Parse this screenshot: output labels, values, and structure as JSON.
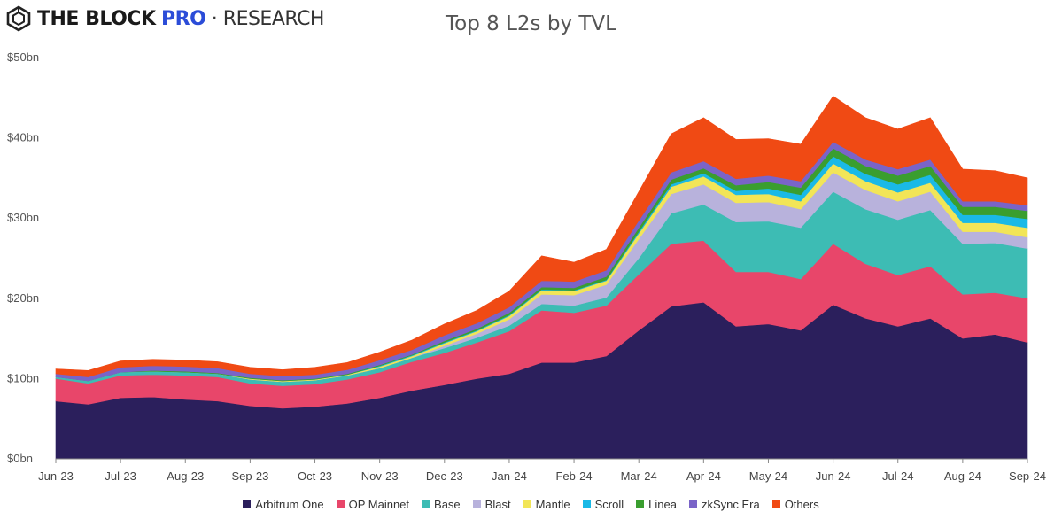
{
  "header": {
    "brand_name": "THE BLOCK",
    "brand_pro": "PRO",
    "brand_sep": " · ",
    "brand_research": "RESEARCH"
  },
  "chart_data": {
    "type": "area",
    "stacked": true,
    "title": "Top 8 L2s by TVL",
    "xlabel": "",
    "ylabel": "",
    "ylim": [
      0,
      50
    ],
    "y_ticks": [
      0,
      10,
      20,
      30,
      40,
      50
    ],
    "y_tick_labels": [
      "$0bn",
      "$10bn",
      "$20bn",
      "$30bn",
      "$40bn",
      "$50bn"
    ],
    "grid": false,
    "legend_position": "bottom",
    "x_ticks": [
      "Jun-23",
      "Jul-23",
      "Aug-23",
      "Sep-23",
      "Oct-23",
      "Nov-23",
      "Dec-23",
      "Jan-24",
      "Feb-24",
      "Mar-24",
      "Apr-24",
      "May-24",
      "Jun-24",
      "Jul-24",
      "Aug-24",
      "Sep-24"
    ],
    "x": [
      "Jun-23",
      "Jun-23 mid",
      "Jul-23",
      "Jul-23 mid",
      "Aug-23",
      "Aug-23 mid",
      "Sep-23",
      "Sep-23 mid",
      "Oct-23",
      "Oct-23 mid",
      "Nov-23",
      "Nov-23 mid",
      "Dec-23",
      "Dec-23 mid",
      "Jan-24",
      "Jan-24 mid",
      "Feb-24",
      "Feb-24 mid",
      "Mar-24",
      "Mar-24 mid",
      "Apr-24",
      "Apr-24 mid",
      "May-24",
      "May-24 mid",
      "Jun-24",
      "Jun-24 mid",
      "Jul-24",
      "Jul-24 mid",
      "Aug-24",
      "Aug-24 mid",
      "Sep-24"
    ],
    "series": [
      {
        "name": "Arbitrum One",
        "color": "#2b1f5c",
        "values": [
          7.2,
          6.8,
          7.6,
          7.7,
          7.4,
          7.2,
          6.6,
          6.3,
          6.5,
          6.9,
          7.6,
          8.5,
          9.2,
          10.0,
          10.6,
          12.0,
          12.0,
          12.8,
          16.0,
          19.0,
          19.5,
          16.5,
          16.8,
          16.0,
          19.2,
          17.5,
          16.5,
          17.5,
          15.0,
          15.5,
          14.5
        ]
      },
      {
        "name": "OP Mainnet",
        "color": "#e8466a",
        "values": [
          2.8,
          2.6,
          2.8,
          2.8,
          3.0,
          3.0,
          2.8,
          2.8,
          2.8,
          3.0,
          3.2,
          3.6,
          4.0,
          4.5,
          5.3,
          6.5,
          6.2,
          6.3,
          7.0,
          7.8,
          7.7,
          6.8,
          6.5,
          6.4,
          7.6,
          6.8,
          6.4,
          6.5,
          5.5,
          5.2,
          5.5
        ]
      },
      {
        "name": "Base",
        "color": "#3dbcb4",
        "values": [
          0.2,
          0.3,
          0.4,
          0.4,
          0.4,
          0.4,
          0.5,
          0.5,
          0.5,
          0.5,
          0.5,
          0.5,
          0.6,
          0.6,
          0.7,
          0.8,
          0.9,
          1.0,
          2.0,
          3.8,
          4.5,
          6.2,
          6.3,
          6.4,
          6.5,
          6.8,
          6.9,
          7.0,
          6.3,
          6.2,
          6.2
        ]
      },
      {
        "name": "Blast",
        "color": "#b8b2dc",
        "values": [
          0.0,
          0.0,
          0.0,
          0.0,
          0.0,
          0.0,
          0.0,
          0.0,
          0.0,
          0.0,
          0.0,
          0.0,
          0.3,
          0.5,
          0.8,
          1.2,
          1.3,
          1.6,
          2.4,
          2.4,
          2.5,
          2.4,
          2.4,
          2.3,
          2.4,
          2.4,
          2.3,
          2.3,
          1.5,
          1.4,
          1.4
        ]
      },
      {
        "name": "Mantle",
        "color": "#f2e557",
        "values": [
          0.0,
          0.0,
          0.0,
          0.0,
          0.0,
          0.0,
          0.1,
          0.1,
          0.1,
          0.1,
          0.2,
          0.2,
          0.3,
          0.3,
          0.4,
          0.5,
          0.5,
          0.5,
          0.7,
          0.9,
          1.0,
          1.0,
          1.0,
          1.0,
          1.1,
          1.1,
          1.1,
          1.1,
          1.1,
          1.1,
          1.2
        ]
      },
      {
        "name": "Scroll",
        "color": "#1ab9e6",
        "values": [
          0.0,
          0.0,
          0.0,
          0.0,
          0.0,
          0.0,
          0.0,
          0.0,
          0.0,
          0.0,
          0.1,
          0.1,
          0.1,
          0.1,
          0.1,
          0.1,
          0.1,
          0.1,
          0.2,
          0.3,
          0.4,
          0.5,
          0.7,
          0.8,
          0.9,
          0.9,
          1.0,
          1.0,
          1.0,
          1.0,
          1.1
        ]
      },
      {
        "name": "Linea",
        "color": "#3a9e2f",
        "values": [
          0.0,
          0.0,
          0.0,
          0.1,
          0.1,
          0.1,
          0.1,
          0.1,
          0.1,
          0.1,
          0.1,
          0.1,
          0.2,
          0.2,
          0.3,
          0.3,
          0.3,
          0.4,
          0.5,
          0.6,
          0.6,
          0.7,
          0.8,
          0.9,
          1.0,
          1.0,
          1.1,
          1.1,
          1.0,
          1.0,
          1.0
        ]
      },
      {
        "name": "zkSync Era",
        "color": "#7a64c8",
        "values": [
          0.4,
          0.5,
          0.6,
          0.6,
          0.6,
          0.6,
          0.5,
          0.5,
          0.5,
          0.5,
          0.6,
          0.6,
          0.7,
          0.7,
          0.7,
          0.8,
          0.8,
          0.8,
          0.9,
          0.9,
          0.9,
          0.8,
          0.8,
          0.8,
          0.8,
          0.8,
          0.8,
          0.8,
          0.7,
          0.7,
          0.7
        ]
      },
      {
        "name": "Others",
        "color": "#f04a14",
        "values": [
          0.6,
          0.8,
          0.8,
          0.8,
          0.8,
          0.8,
          0.8,
          0.8,
          0.9,
          0.9,
          1.0,
          1.2,
          1.4,
          1.6,
          2.0,
          3.1,
          2.4,
          2.6,
          3.6,
          4.8,
          5.4,
          4.9,
          4.6,
          4.6,
          5.7,
          5.2,
          5.0,
          5.2,
          4.0,
          3.8,
          3.4
        ]
      }
    ]
  }
}
